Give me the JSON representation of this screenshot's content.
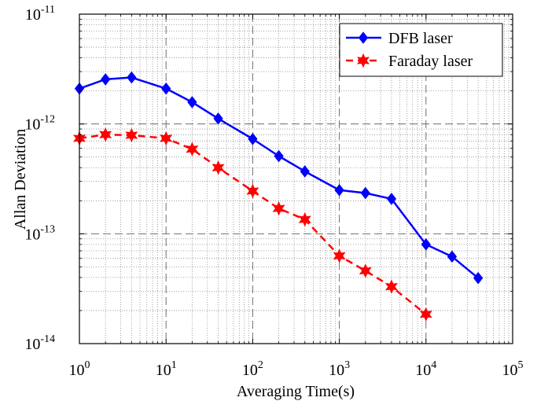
{
  "chart_data": {
    "type": "line",
    "xlabel": "Averaging Time(s)",
    "ylabel": "Allan Deviation",
    "x_scale": "log",
    "y_scale": "log",
    "xlim": [
      1,
      100000
    ],
    "ylim": [
      1e-14,
      1e-11
    ],
    "x_ticks": [
      {
        "value": 1,
        "base": "10",
        "exp": "0"
      },
      {
        "value": 10,
        "base": "10",
        "exp": "1"
      },
      {
        "value": 100,
        "base": "10",
        "exp": "2"
      },
      {
        "value": 1000,
        "base": "10",
        "exp": "3"
      },
      {
        "value": 10000,
        "base": "10",
        "exp": "4"
      },
      {
        "value": 100000,
        "base": "10",
        "exp": "5"
      }
    ],
    "y_ticks": [
      {
        "value": 1e-14,
        "base": "10",
        "exp": "-14"
      },
      {
        "value": 1e-13,
        "base": "10",
        "exp": "-13"
      },
      {
        "value": 1e-12,
        "base": "10",
        "exp": "-12"
      },
      {
        "value": 1e-11,
        "base": "10",
        "exp": "-11"
      }
    ],
    "grid": {
      "major": true,
      "minor": true
    },
    "legend_position": "top-right",
    "series": [
      {
        "name": "DFB laser",
        "color": "#0000ff",
        "line_style": "solid",
        "marker": "diamond",
        "x": [
          1,
          2,
          4,
          10,
          20,
          40,
          100,
          200,
          400,
          1000,
          2000,
          4000,
          10000,
          20000,
          40000
        ],
        "y": [
          2.1e-12,
          2.55e-12,
          2.65e-12,
          2.1e-12,
          1.58e-12,
          1.12e-12,
          7.3e-13,
          5.1e-13,
          3.7e-13,
          2.5e-13,
          2.35e-13,
          2.08e-13,
          8e-14,
          6.2e-14,
          3.95e-14
        ]
      },
      {
        "name": "Faraday laser",
        "color": "#ff0000",
        "line_style": "dashed",
        "marker": "hexagram",
        "x": [
          1,
          2,
          4,
          10,
          20,
          40,
          100,
          200,
          400,
          1000,
          2000,
          4000,
          10000
        ],
        "y": [
          7.4e-13,
          8e-13,
          7.9e-13,
          7.4e-13,
          5.9e-13,
          4e-13,
          2.45e-13,
          1.7e-13,
          1.35e-13,
          6.3e-14,
          4.6e-14,
          3.3e-14,
          1.85e-14
        ]
      }
    ]
  }
}
